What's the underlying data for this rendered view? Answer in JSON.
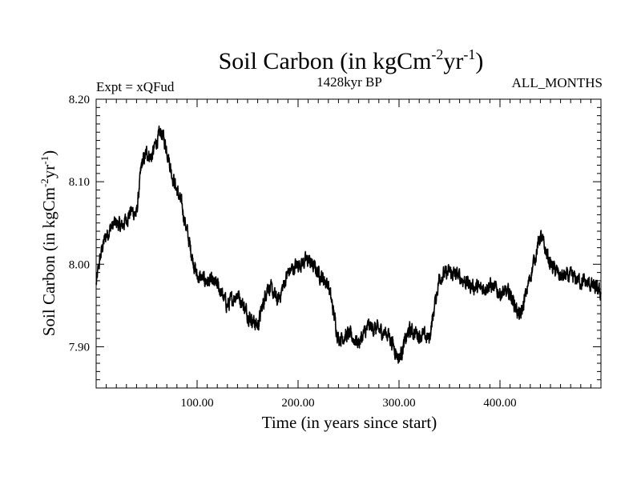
{
  "chart_data": {
    "type": "line",
    "title": "Soil Carbon (in kgCm",
    "title_sup1": "-2",
    "title_mid": "yr",
    "title_sup2": "-1",
    "title_end": ")",
    "subtitle_left": "Expt = xQFud",
    "subtitle_center": "1428kyr BP",
    "subtitle_right": "ALL_MONTHS",
    "xlabel": "Time (in years since start)",
    "ylabel": "Soil Carbon (in kgCm",
    "ylabel_sup1": "-2",
    "ylabel_mid": "yr",
    "ylabel_sup2": "-1",
    "ylabel_end": ")",
    "xlim": [
      0,
      500
    ],
    "ylim": [
      7.85,
      8.2
    ],
    "x_ticks": [
      100,
      200,
      300,
      400
    ],
    "x_tick_labels": [
      "100.00",
      "200.00",
      "300.00",
      "400.00"
    ],
    "y_ticks": [
      7.9,
      8.0,
      8.1,
      8.2
    ],
    "y_tick_labels": [
      "7.90",
      "8.00",
      "8.10",
      "8.20"
    ],
    "series": [
      {
        "name": "Soil Carbon",
        "color": "#000000",
        "x": [
          0,
          3,
          6,
          10,
          15,
          20,
          25,
          30,
          35,
          40,
          45,
          50,
          55,
          60,
          65,
          70,
          75,
          80,
          85,
          90,
          95,
          100,
          110,
          120,
          130,
          140,
          150,
          160,
          170,
          180,
          190,
          200,
          210,
          220,
          230,
          240,
          250,
          260,
          270,
          280,
          290,
          300,
          310,
          320,
          330,
          340,
          350,
          360,
          370,
          380,
          390,
          400,
          410,
          420,
          430,
          440,
          450,
          460,
          470,
          480,
          490,
          500
        ],
        "y": [
          7.975,
          8.0,
          8.02,
          8.035,
          8.045,
          8.05,
          8.045,
          8.055,
          8.065,
          8.06,
          8.12,
          8.135,
          8.13,
          8.15,
          8.16,
          8.14,
          8.11,
          8.09,
          8.07,
          8.04,
          8.01,
          7.985,
          7.98,
          7.975,
          7.95,
          7.965,
          7.94,
          7.925,
          7.975,
          7.955,
          7.99,
          8.0,
          8.005,
          7.99,
          7.975,
          7.91,
          7.915,
          7.905,
          7.925,
          7.92,
          7.915,
          7.885,
          7.92,
          7.915,
          7.91,
          7.985,
          7.99,
          7.985,
          7.975,
          7.97,
          7.975,
          7.965,
          7.965,
          7.935,
          7.985,
          8.035,
          8.0,
          7.985,
          7.985,
          7.98,
          7.975,
          7.965
        ]
      }
    ]
  }
}
